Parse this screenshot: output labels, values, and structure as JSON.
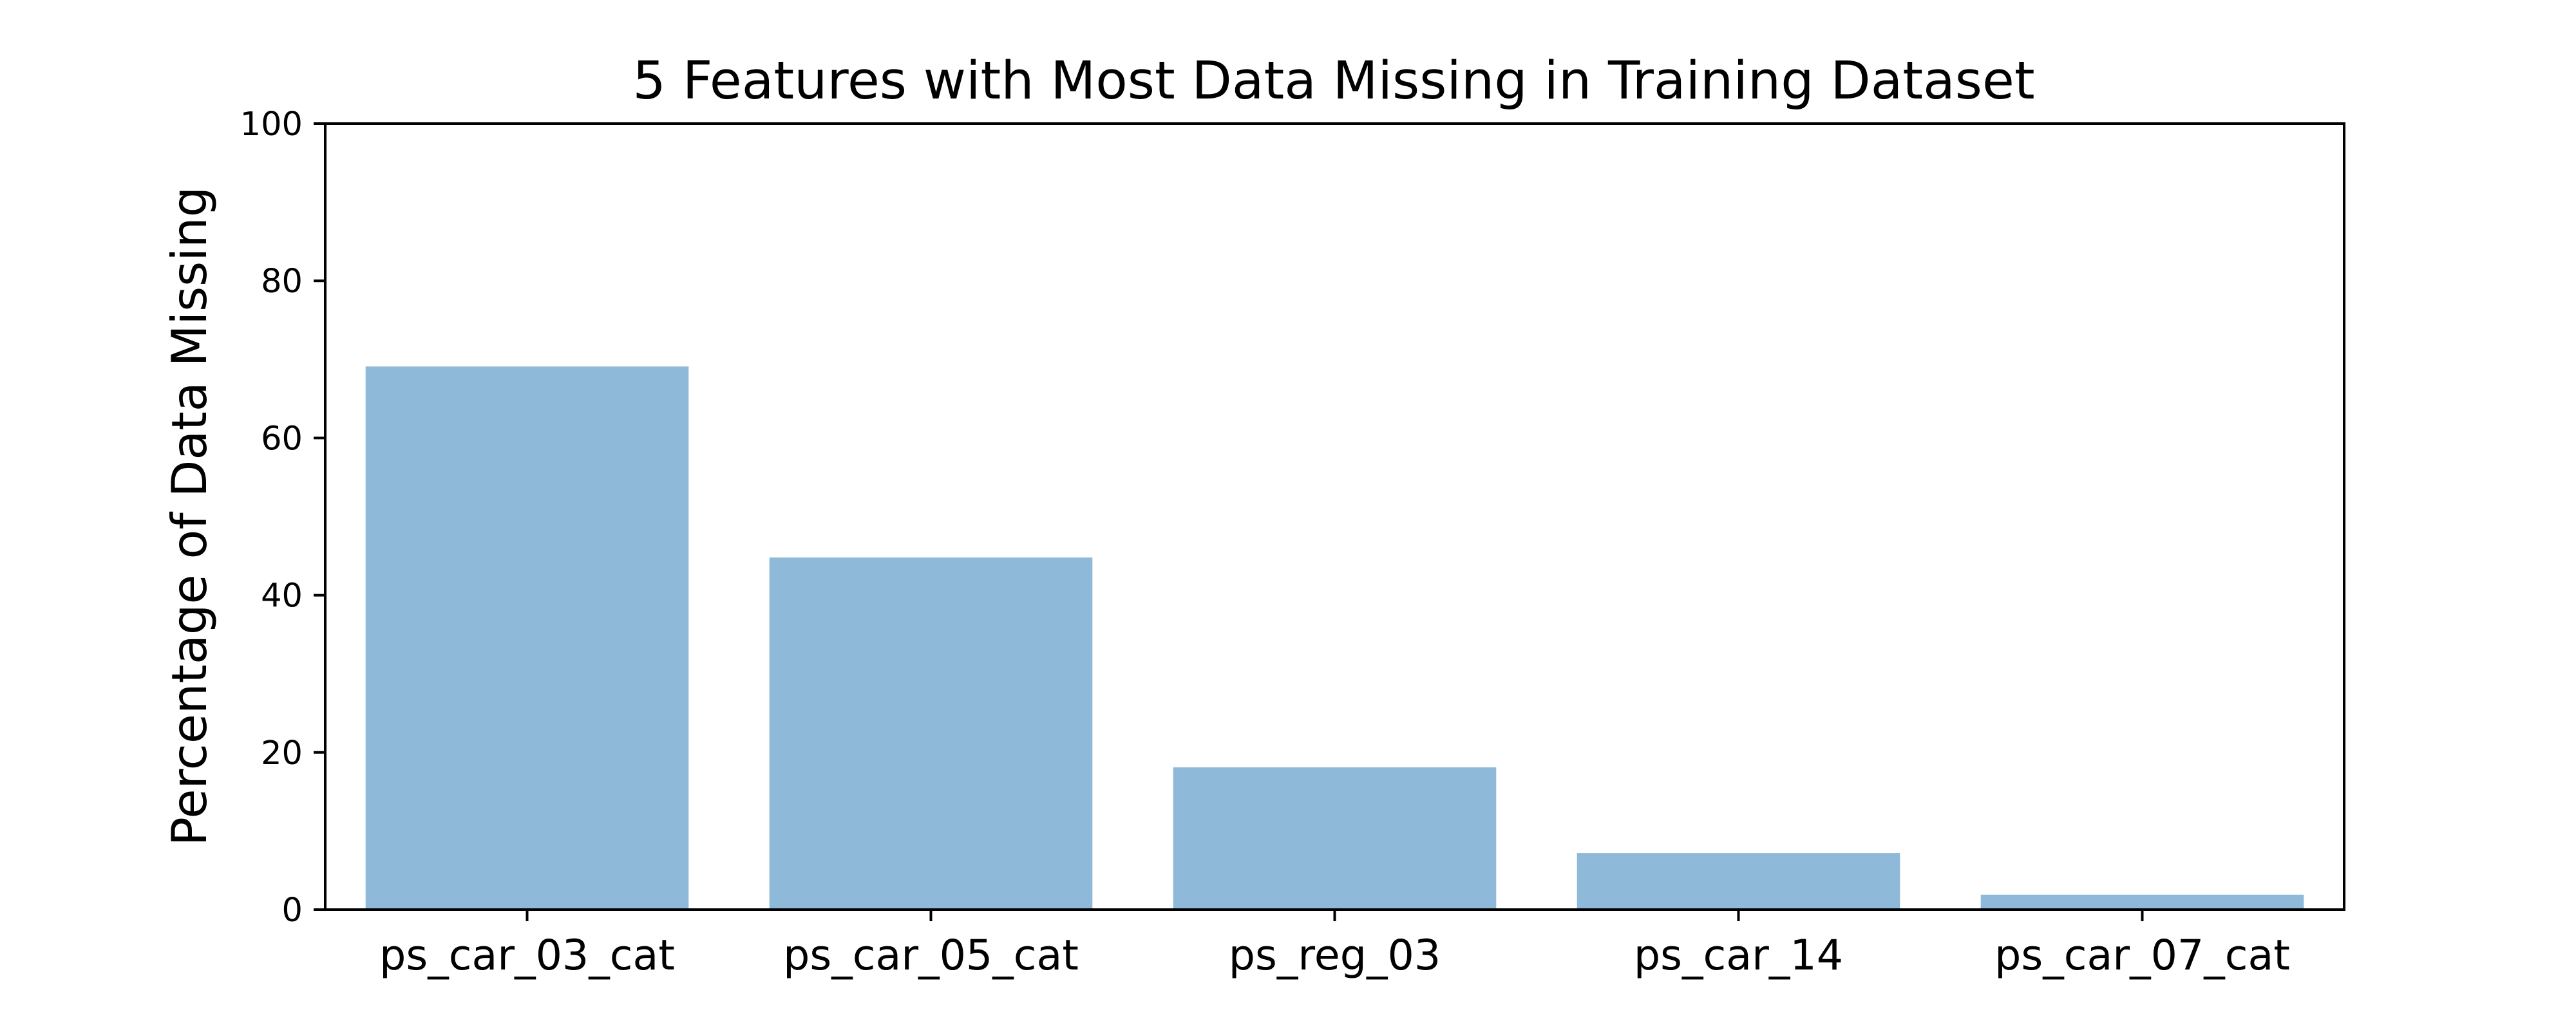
{
  "chart_data": {
    "type": "bar",
    "title": "5 Features with Most Data Missing in Training Dataset",
    "xlabel": "",
    "ylabel": "Percentage of Data Missing",
    "categories": [
      "ps_car_03_cat",
      "ps_car_05_cat",
      "ps_reg_03",
      "ps_car_14",
      "ps_car_07_cat"
    ],
    "values": [
      69.1,
      44.8,
      18.1,
      7.2,
      1.9
    ],
    "ylim": [
      0,
      100
    ],
    "yticks": [
      "0",
      "20",
      "40",
      "60",
      "80",
      "100"
    ],
    "grid": false,
    "bar_color": "#8fb9d8",
    "axis_color": "#000000"
  }
}
